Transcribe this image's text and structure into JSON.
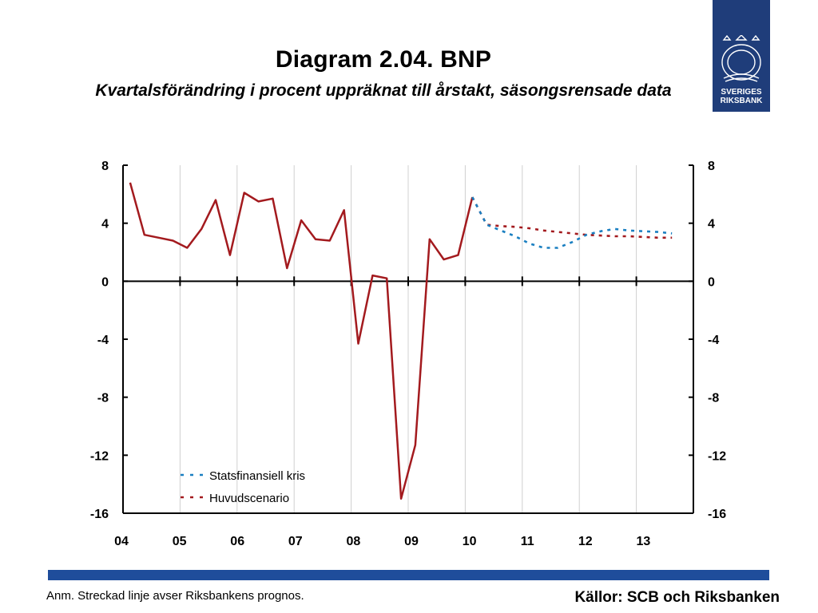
{
  "header": {
    "title": "Diagram 2.04. BNP",
    "subtitle": "Kvartalsförändring i procent uppräknat till årstakt, säsongsrensade data"
  },
  "logo": {
    "line1": "SVERIGES",
    "line2": "RIKSBANK",
    "color": "#1f3d7a"
  },
  "footer": {
    "note": "Anm. Streckad linje avser Riksbankens prognos.",
    "sources": "Källor: SCB och Riksbanken",
    "bar_color": "#1f4d9b"
  },
  "chart_data": {
    "type": "line",
    "title": "Diagram 2.04. BNP",
    "subtitle": "Kvartalsförändring i procent uppräknat till årstakt, säsongsrensade data",
    "x_tick_labels": [
      "04",
      "05",
      "06",
      "07",
      "08",
      "09",
      "10",
      "11",
      "12",
      "13"
    ],
    "xlim": [
      2004.0,
      2014.0
    ],
    "ylim": [
      -16,
      8
    ],
    "y_ticks": [
      8,
      4,
      0,
      -4,
      -8,
      -12,
      -16
    ],
    "y_tick_labels_left": [
      "8",
      "4",
      "0",
      "-4",
      "-8",
      "-12",
      "-16"
    ],
    "y_tick_labels_right": [
      "8",
      "4",
      "0",
      "-4",
      "-8",
      "-12",
      "-16"
    ],
    "grid": "vertical",
    "legend_position": "bottom-left",
    "series": [
      {
        "name": "",
        "style": "solid",
        "color": "#a31a1e",
        "points": [
          {
            "x": 2004.125,
            "y": 6.8
          },
          {
            "x": 2004.375,
            "y": 3.2
          },
          {
            "x": 2004.625,
            "y": 3.0
          },
          {
            "x": 2004.875,
            "y": 2.8
          },
          {
            "x": 2005.125,
            "y": 2.3
          },
          {
            "x": 2005.375,
            "y": 3.6
          },
          {
            "x": 2005.625,
            "y": 5.6
          },
          {
            "x": 2005.875,
            "y": 1.8
          },
          {
            "x": 2006.125,
            "y": 6.1
          },
          {
            "x": 2006.375,
            "y": 5.5
          },
          {
            "x": 2006.625,
            "y": 5.7
          },
          {
            "x": 2006.875,
            "y": 0.9
          },
          {
            "x": 2007.125,
            "y": 4.2
          },
          {
            "x": 2007.375,
            "y": 2.9
          },
          {
            "x": 2007.625,
            "y": 2.8
          },
          {
            "x": 2007.875,
            "y": 4.9
          },
          {
            "x": 2008.125,
            "y": -4.3
          },
          {
            "x": 2008.375,
            "y": 0.4
          },
          {
            "x": 2008.625,
            "y": 0.2
          },
          {
            "x": 2008.875,
            "y": -15.0
          },
          {
            "x": 2009.125,
            "y": -11.3
          },
          {
            "x": 2009.375,
            "y": 2.9
          },
          {
            "x": 2009.625,
            "y": 1.5
          },
          {
            "x": 2009.875,
            "y": 1.8
          },
          {
            "x": 2010.125,
            "y": 5.8
          }
        ]
      },
      {
        "name": "Huvudscenario",
        "style": "dashed",
        "color": "#a31a1e",
        "points": [
          {
            "x": 2010.125,
            "y": 5.8
          },
          {
            "x": 2010.375,
            "y": 3.9
          },
          {
            "x": 2010.625,
            "y": 3.8
          },
          {
            "x": 2010.875,
            "y": 3.75
          },
          {
            "x": 2011.125,
            "y": 3.65
          },
          {
            "x": 2011.375,
            "y": 3.5
          },
          {
            "x": 2011.625,
            "y": 3.4
          },
          {
            "x": 2011.875,
            "y": 3.3
          },
          {
            "x": 2012.125,
            "y": 3.2
          },
          {
            "x": 2012.375,
            "y": 3.15
          },
          {
            "x": 2012.625,
            "y": 3.1
          },
          {
            "x": 2012.875,
            "y": 3.1
          },
          {
            "x": 2013.125,
            "y": 3.05
          },
          {
            "x": 2013.375,
            "y": 3.0
          },
          {
            "x": 2013.625,
            "y": 3.0
          }
        ]
      },
      {
        "name": "Statsfinansiell kris",
        "style": "dashed",
        "color": "#1a7fc1",
        "points": [
          {
            "x": 2010.125,
            "y": 5.8
          },
          {
            "x": 2010.375,
            "y": 3.9
          },
          {
            "x": 2010.625,
            "y": 3.5
          },
          {
            "x": 2010.875,
            "y": 3.1
          },
          {
            "x": 2011.125,
            "y": 2.6
          },
          {
            "x": 2011.375,
            "y": 2.3
          },
          {
            "x": 2011.625,
            "y": 2.3
          },
          {
            "x": 2011.875,
            "y": 2.7
          },
          {
            "x": 2012.125,
            "y": 3.2
          },
          {
            "x": 2012.375,
            "y": 3.45
          },
          {
            "x": 2012.625,
            "y": 3.6
          },
          {
            "x": 2012.875,
            "y": 3.5
          },
          {
            "x": 2013.125,
            "y": 3.45
          },
          {
            "x": 2013.375,
            "y": 3.4
          },
          {
            "x": 2013.625,
            "y": 3.3
          }
        ]
      }
    ],
    "legend": [
      {
        "label": "Statsfinansiell kris",
        "color": "#1a7fc1"
      },
      {
        "label": "Huvudscenario",
        "color": "#a31a1e"
      }
    ]
  }
}
